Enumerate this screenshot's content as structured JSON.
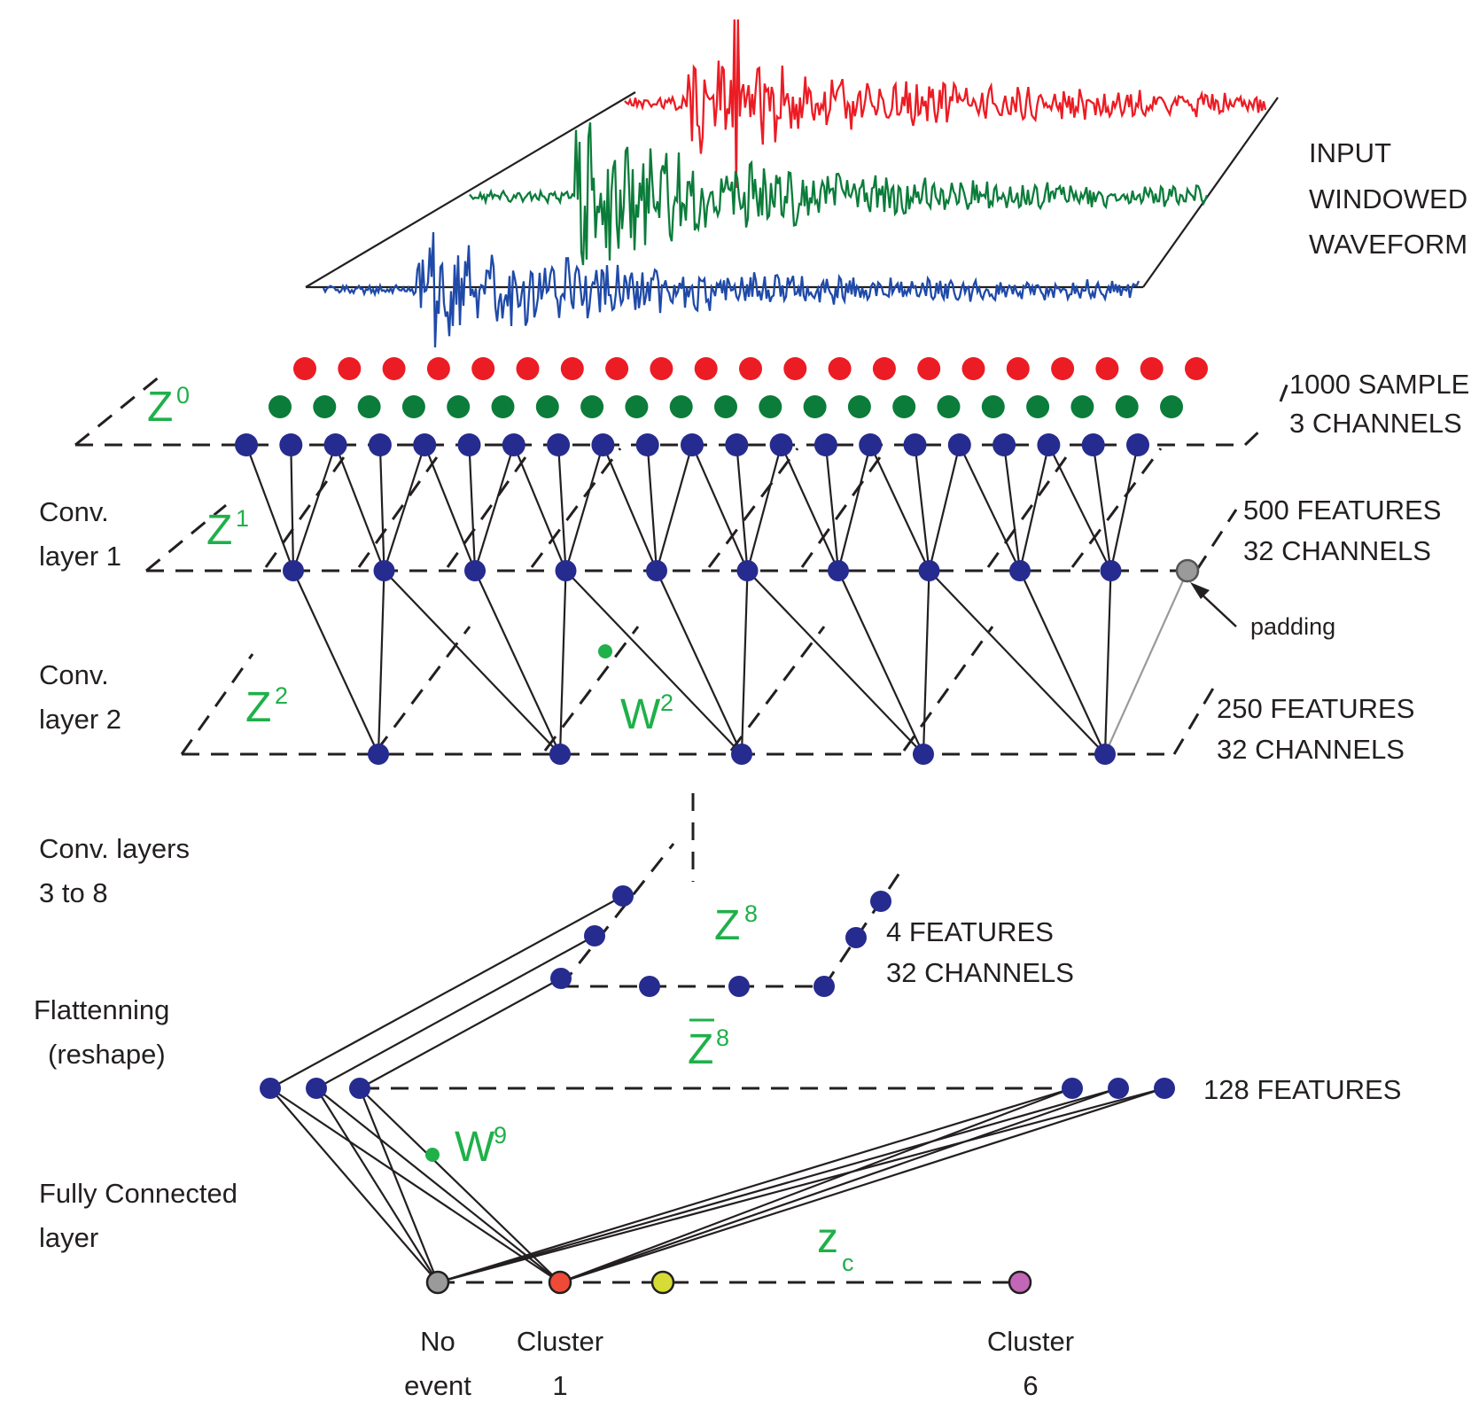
{
  "colors": {
    "red": "#ec1c24",
    "green": "#0b7c3a",
    "blue": "#1f4aa8",
    "node": "#262b8f",
    "label_green": "#1fb04a",
    "padding": "#9a9a9a",
    "no_event": "#9a9a9a",
    "cluster1": "#ef4a38",
    "cluster2": "#d6dc35",
    "cluster6": "#c267b7"
  },
  "labels": {
    "input": [
      "INPUT",
      "WINDOWED",
      "WAVEFORM"
    ],
    "samples": [
      "1000 SAMPLE",
      "3 CHANNELS"
    ],
    "features1": [
      "500 FEATURES",
      "32 CHANNELS"
    ],
    "features2": [
      "250 FEATURES",
      "32 CHANNELS"
    ],
    "features8": [
      "4 FEATURES",
      "32 CHANNELS"
    ],
    "features128": "128 FEATURES",
    "padding": "padding",
    "conv1": [
      "Conv.",
      "layer 1"
    ],
    "conv2": [
      "Conv.",
      "layer 2"
    ],
    "conv3to8": [
      "Conv. layers",
      "3 to 8"
    ],
    "flatten": [
      "Flattenning",
      "(reshape)"
    ],
    "fc": [
      "Fully Connected",
      "layer"
    ],
    "no_event": [
      "No",
      "event"
    ],
    "cluster1": [
      "Cluster",
      "1"
    ],
    "cluster6": [
      "Cluster",
      "6"
    ]
  },
  "math": {
    "z0": {
      "base": "Z",
      "sup": "0"
    },
    "z1": {
      "base": "Z",
      "sup": "1"
    },
    "z2": {
      "base": "Z",
      "sup": "2"
    },
    "w2": {
      "base": "W",
      "sup": "2"
    },
    "z8": {
      "base": "Z",
      "sup": "8"
    },
    "z8bar": {
      "base": "Z",
      "sup": "8"
    },
    "w9": {
      "base": "W",
      "sup": "9"
    },
    "zc": {
      "base": "z",
      "sub": "c"
    }
  }
}
